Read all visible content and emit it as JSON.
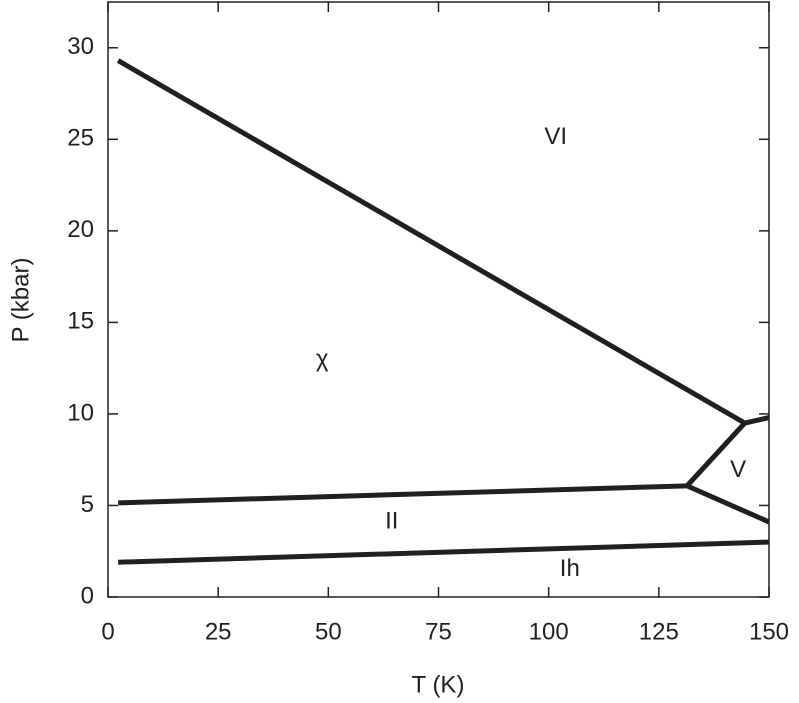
{
  "chart_data": {
    "type": "line",
    "xlabel": "T (K)",
    "ylabel": "P (kbar)",
    "xlim": [
      0,
      150
    ],
    "xticks": [
      0,
      25,
      50,
      75,
      100,
      125,
      150
    ],
    "ylim": [
      0,
      32.5
    ],
    "yticks": [
      0,
      5,
      10,
      15,
      20,
      25,
      30
    ],
    "series": [
      {
        "color": "#231f20",
        "x": [
          2.3,
          144.5
        ],
        "values": [
          29.3,
          9.5
        ]
      },
      {
        "color": "#231f20",
        "x": [
          144.5,
          150
        ],
        "values": [
          9.5,
          9.8
        ]
      },
      {
        "color": "#231f20",
        "x": [
          131.4,
          144.5
        ],
        "values": [
          6.07,
          9.5
        ]
      },
      {
        "color": "#231f20",
        "x": [
          2.3,
          131.4
        ],
        "values": [
          5.14,
          6.07
        ]
      },
      {
        "color": "#231f20",
        "x": [
          131.4,
          150
        ],
        "values": [
          6.07,
          4.1
        ]
      },
      {
        "color": "#231f20",
        "x": [
          2.3,
          150
        ],
        "values": [
          1.9,
          3.0
        ]
      }
    ],
    "annotations": [
      {
        "text": "VI",
        "x": 101.6,
        "y": 25.1
      },
      {
        "text": "χ",
        "x": 48.6,
        "y": 12.95
      },
      {
        "text": "V",
        "x": 143,
        "y": 6.9
      },
      {
        "text": "II",
        "x": 64.4,
        "y": 4.1
      },
      {
        "text": "Ih",
        "x": 104.8,
        "y": 1.5
      }
    ]
  }
}
